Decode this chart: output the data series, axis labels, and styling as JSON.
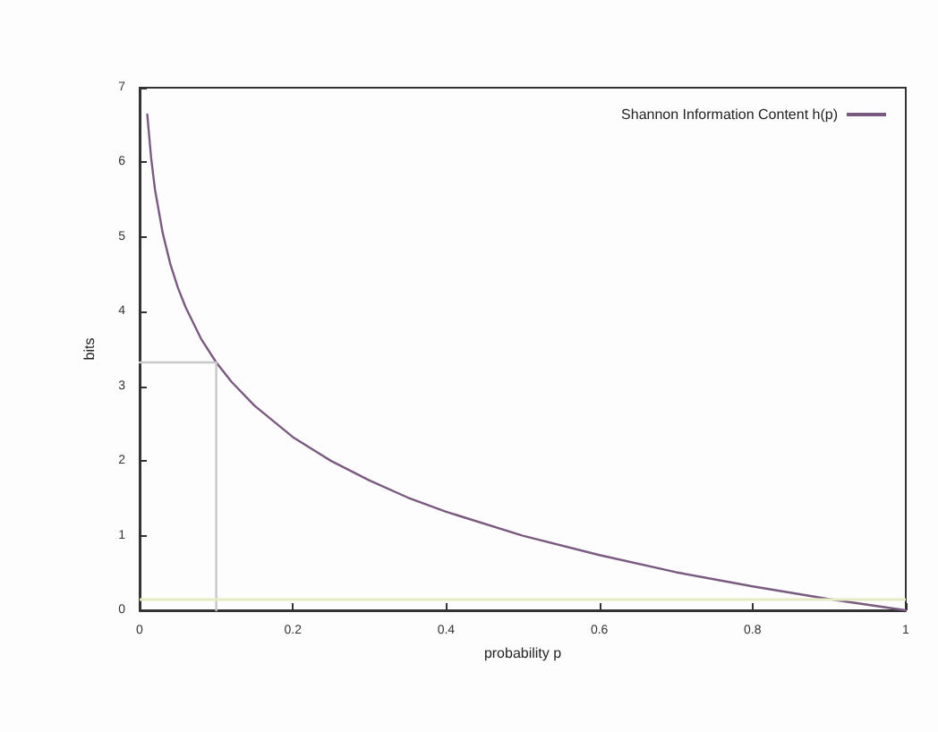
{
  "chart_data": {
    "type": "line",
    "xlabel": "probability p",
    "ylabel": "bits",
    "xlim": [
      0,
      1
    ],
    "xticks": [
      0,
      0.2,
      0.4,
      0.6,
      0.8,
      1
    ],
    "ylim": [
      0,
      7
    ],
    "yticks": [
      0,
      1,
      2,
      3,
      4,
      5,
      6,
      7
    ],
    "grid": false,
    "legend": "top right",
    "marker": "none",
    "line_style": "solid",
    "series": [
      {
        "name": "Shannon Information Content h(p)",
        "color": "#7a5a80",
        "x": [
          0.01,
          0.015,
          0.02,
          0.03,
          0.04,
          0.05,
          0.06,
          0.08,
          0.1,
          0.12,
          0.15,
          0.2,
          0.25,
          0.3,
          0.35,
          0.4,
          0.5,
          0.6,
          0.7,
          0.8,
          0.9,
          1
        ],
        "values": [
          6.64,
          6.06,
          5.64,
          5.06,
          4.64,
          4.32,
          4.06,
          3.64,
          3.32,
          3.06,
          2.74,
          2.32,
          2.0,
          1.74,
          1.51,
          1.32,
          1.0,
          0.74,
          0.51,
          0.32,
          0.15,
          0
        ]
      },
      {
        "color": "#c8c8c8",
        "x": [
          0,
          0.1,
          0.1
        ],
        "values": [
          3.32,
          3.32,
          0
        ]
      }
    ],
    "ref_lines": [
      {
        "axis": "y",
        "value": 0.15,
        "color": "#e6ebc4"
      }
    ]
  }
}
